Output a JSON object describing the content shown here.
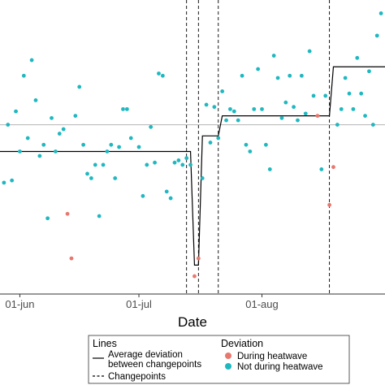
{
  "chart_data": {
    "type": "scatter",
    "title": "",
    "xlabel": "Date",
    "ylabel": "",
    "x_ticks": [
      {
        "date": "2023-06-01",
        "label": "01-jun"
      },
      {
        "date": "2023-07-01",
        "label": "01-jul"
      },
      {
        "date": "2023-08-01",
        "label": "01-aug"
      }
    ],
    "xlim": [
      "2023-05-27",
      "2023-09-01"
    ],
    "ylim": [
      -3.8,
      2.8
    ],
    "grid": false,
    "reference_line": {
      "y": 0
    },
    "points": [
      {
        "x": "2023-05-28",
        "y": -1.3,
        "group": "not_heatwave"
      },
      {
        "x": "2023-05-29",
        "y": 0.0,
        "group": "not_heatwave"
      },
      {
        "x": "2023-05-30",
        "y": -1.25,
        "group": "not_heatwave"
      },
      {
        "x": "2023-05-31",
        "y": 0.3,
        "group": "not_heatwave"
      },
      {
        "x": "2023-06-01",
        "y": -0.6,
        "group": "not_heatwave"
      },
      {
        "x": "2023-06-02",
        "y": 1.1,
        "group": "not_heatwave"
      },
      {
        "x": "2023-06-03",
        "y": -0.3,
        "group": "not_heatwave"
      },
      {
        "x": "2023-06-04",
        "y": 1.45,
        "group": "not_heatwave"
      },
      {
        "x": "2023-06-05",
        "y": 0.55,
        "group": "not_heatwave"
      },
      {
        "x": "2023-06-06",
        "y": -0.7,
        "group": "not_heatwave"
      },
      {
        "x": "2023-06-07",
        "y": -0.45,
        "group": "not_heatwave"
      },
      {
        "x": "2023-06-08",
        "y": -2.1,
        "group": "not_heatwave"
      },
      {
        "x": "2023-06-09",
        "y": 0.15,
        "group": "not_heatwave"
      },
      {
        "x": "2023-06-10",
        "y": -0.6,
        "group": "not_heatwave"
      },
      {
        "x": "2023-06-11",
        "y": -0.2,
        "group": "not_heatwave"
      },
      {
        "x": "2023-06-12",
        "y": -0.1,
        "group": "not_heatwave"
      },
      {
        "x": "2023-06-13",
        "y": -2.0,
        "group": "heatwave"
      },
      {
        "x": "2023-06-14",
        "y": -3.0,
        "group": "heatwave"
      },
      {
        "x": "2023-06-15",
        "y": 0.2,
        "group": "not_heatwave"
      },
      {
        "x": "2023-06-16",
        "y": 0.85,
        "group": "not_heatwave"
      },
      {
        "x": "2023-06-17",
        "y": -0.45,
        "group": "not_heatwave"
      },
      {
        "x": "2023-06-18",
        "y": -1.1,
        "group": "not_heatwave"
      },
      {
        "x": "2023-06-19",
        "y": -1.2,
        "group": "not_heatwave"
      },
      {
        "x": "2023-06-20",
        "y": -0.9,
        "group": "not_heatwave"
      },
      {
        "x": "2023-06-21",
        "y": -2.05,
        "group": "not_heatwave"
      },
      {
        "x": "2023-06-22",
        "y": -0.9,
        "group": "not_heatwave"
      },
      {
        "x": "2023-06-23",
        "y": -0.6,
        "group": "not_heatwave"
      },
      {
        "x": "2023-06-24",
        "y": -0.45,
        "group": "not_heatwave"
      },
      {
        "x": "2023-06-25",
        "y": -1.2,
        "group": "not_heatwave"
      },
      {
        "x": "2023-06-26",
        "y": -0.5,
        "group": "not_heatwave"
      },
      {
        "x": "2023-06-27",
        "y": 0.35,
        "group": "not_heatwave"
      },
      {
        "x": "2023-06-28",
        "y": 0.35,
        "group": "not_heatwave"
      },
      {
        "x": "2023-06-29",
        "y": -0.3,
        "group": "not_heatwave"
      },
      {
        "x": "2023-07-01",
        "y": -0.5,
        "group": "not_heatwave"
      },
      {
        "x": "2023-07-02",
        "y": -1.6,
        "group": "not_heatwave"
      },
      {
        "x": "2023-07-03",
        "y": -0.9,
        "group": "not_heatwave"
      },
      {
        "x": "2023-07-04",
        "y": -0.05,
        "group": "not_heatwave"
      },
      {
        "x": "2023-07-05",
        "y": -0.85,
        "group": "not_heatwave"
      },
      {
        "x": "2023-07-06",
        "y": 1.15,
        "group": "not_heatwave"
      },
      {
        "x": "2023-07-07",
        "y": 1.1,
        "group": "not_heatwave"
      },
      {
        "x": "2023-07-08",
        "y": -1.5,
        "group": "not_heatwave"
      },
      {
        "x": "2023-07-09",
        "y": -1.65,
        "group": "not_heatwave"
      },
      {
        "x": "2023-07-10",
        "y": -0.85,
        "group": "not_heatwave"
      },
      {
        "x": "2023-07-11",
        "y": -0.8,
        "group": "not_heatwave"
      },
      {
        "x": "2023-07-12",
        "y": -0.9,
        "group": "not_heatwave"
      },
      {
        "x": "2023-07-13",
        "y": -0.75,
        "group": "not_heatwave"
      },
      {
        "x": "2023-07-14",
        "y": -0.9,
        "group": "not_heatwave"
      },
      {
        "x": "2023-07-15",
        "y": -3.4,
        "group": "heatwave"
      },
      {
        "x": "2023-07-16",
        "y": -3.0,
        "group": "heatwave"
      },
      {
        "x": "2023-07-17",
        "y": -1.2,
        "group": "not_heatwave"
      },
      {
        "x": "2023-07-18",
        "y": 0.45,
        "group": "not_heatwave"
      },
      {
        "x": "2023-07-19",
        "y": -0.4,
        "group": "not_heatwave"
      },
      {
        "x": "2023-07-20",
        "y": 0.4,
        "group": "not_heatwave"
      },
      {
        "x": "2023-07-21",
        "y": -0.3,
        "group": "not_heatwave"
      },
      {
        "x": "2023-07-22",
        "y": 0.75,
        "group": "not_heatwave"
      },
      {
        "x": "2023-07-23",
        "y": 0.1,
        "group": "not_heatwave"
      },
      {
        "x": "2023-07-24",
        "y": 0.35,
        "group": "not_heatwave"
      },
      {
        "x": "2023-07-25",
        "y": 0.3,
        "group": "not_heatwave"
      },
      {
        "x": "2023-07-26",
        "y": 0.1,
        "group": "not_heatwave"
      },
      {
        "x": "2023-07-27",
        "y": 1.1,
        "group": "not_heatwave"
      },
      {
        "x": "2023-07-28",
        "y": -0.45,
        "group": "not_heatwave"
      },
      {
        "x": "2023-07-29",
        "y": -0.6,
        "group": "not_heatwave"
      },
      {
        "x": "2023-07-30",
        "y": 0.35,
        "group": "not_heatwave"
      },
      {
        "x": "2023-07-31",
        "y": 1.25,
        "group": "not_heatwave"
      },
      {
        "x": "2023-08-01",
        "y": 0.35,
        "group": "not_heatwave"
      },
      {
        "x": "2023-08-02",
        "y": -0.45,
        "group": "not_heatwave"
      },
      {
        "x": "2023-08-03",
        "y": -1.0,
        "group": "not_heatwave"
      },
      {
        "x": "2023-08-04",
        "y": 1.55,
        "group": "not_heatwave"
      },
      {
        "x": "2023-08-05",
        "y": 1.05,
        "group": "not_heatwave"
      },
      {
        "x": "2023-08-06",
        "y": 0.15,
        "group": "not_heatwave"
      },
      {
        "x": "2023-08-07",
        "y": 0.5,
        "group": "not_heatwave"
      },
      {
        "x": "2023-08-08",
        "y": 1.1,
        "group": "not_heatwave"
      },
      {
        "x": "2023-08-09",
        "y": 0.4,
        "group": "not_heatwave"
      },
      {
        "x": "2023-08-10",
        "y": 0.1,
        "group": "not_heatwave"
      },
      {
        "x": "2023-08-11",
        "y": 1.1,
        "group": "not_heatwave"
      },
      {
        "x": "2023-08-12",
        "y": 0.25,
        "group": "not_heatwave"
      },
      {
        "x": "2023-08-13",
        "y": 1.65,
        "group": "not_heatwave"
      },
      {
        "x": "2023-08-14",
        "y": 0.65,
        "group": "not_heatwave"
      },
      {
        "x": "2023-08-15",
        "y": 0.2,
        "group": "heatwave"
      },
      {
        "x": "2023-08-16",
        "y": -1.0,
        "group": "not_heatwave"
      },
      {
        "x": "2023-08-17",
        "y": 0.65,
        "group": "not_heatwave"
      },
      {
        "x": "2023-08-18",
        "y": -1.8,
        "group": "heatwave"
      },
      {
        "x": "2023-08-19",
        "y": -0.95,
        "group": "heatwave"
      },
      {
        "x": "2023-08-20",
        "y": 0.0,
        "group": "not_heatwave"
      },
      {
        "x": "2023-08-21",
        "y": 0.35,
        "group": "not_heatwave"
      },
      {
        "x": "2023-08-22",
        "y": 1.05,
        "group": "not_heatwave"
      },
      {
        "x": "2023-08-23",
        "y": 0.7,
        "group": "not_heatwave"
      },
      {
        "x": "2023-08-24",
        "y": 0.35,
        "group": "not_heatwave"
      },
      {
        "x": "2023-08-25",
        "y": 1.5,
        "group": "not_heatwave"
      },
      {
        "x": "2023-08-26",
        "y": 0.7,
        "group": "not_heatwave"
      },
      {
        "x": "2023-08-27",
        "y": 0.2,
        "group": "not_heatwave"
      },
      {
        "x": "2023-08-28",
        "y": 1.2,
        "group": "not_heatwave"
      },
      {
        "x": "2023-08-29",
        "y": 0.0,
        "group": "not_heatwave"
      },
      {
        "x": "2023-08-30",
        "y": 2.0,
        "group": "not_heatwave"
      },
      {
        "x": "2023-08-31",
        "y": 2.5,
        "group": "not_heatwave"
      }
    ],
    "average_deviation_line": [
      {
        "x": "2023-05-27",
        "y": -0.6
      },
      {
        "x": "2023-07-14",
        "y": -0.6
      },
      {
        "x": "2023-07-15",
        "y": -3.15
      },
      {
        "x": "2023-07-16",
        "y": -3.15
      },
      {
        "x": "2023-07-17",
        "y": -0.25
      },
      {
        "x": "2023-07-21",
        "y": -0.25
      },
      {
        "x": "2023-07-22",
        "y": 0.2
      },
      {
        "x": "2023-08-18",
        "y": 0.2
      },
      {
        "x": "2023-08-19",
        "y": 1.3
      },
      {
        "x": "2023-09-01",
        "y": 1.3
      }
    ],
    "changepoints": [
      "2023-07-13",
      "2023-07-16",
      "2023-07-21",
      "2023-08-18"
    ],
    "legend": {
      "placement": "bottom",
      "lines_title": "Lines",
      "lines_items": [
        {
          "label": "Average deviation\nbetween changepoints",
          "style": "solid"
        },
        {
          "label": "Changepoints",
          "style": "dashed"
        }
      ],
      "deviation_title": "Deviation",
      "deviation_items": [
        {
          "label": "During heatwave",
          "group": "heatwave"
        },
        {
          "label": "Not during heatwave",
          "group": "not_heatwave"
        }
      ]
    },
    "colors": {
      "heatwave": "#e8776e",
      "not_heatwave": "#1fb8c0",
      "line": "#000000",
      "reference": "#bdbdbd"
    }
  }
}
